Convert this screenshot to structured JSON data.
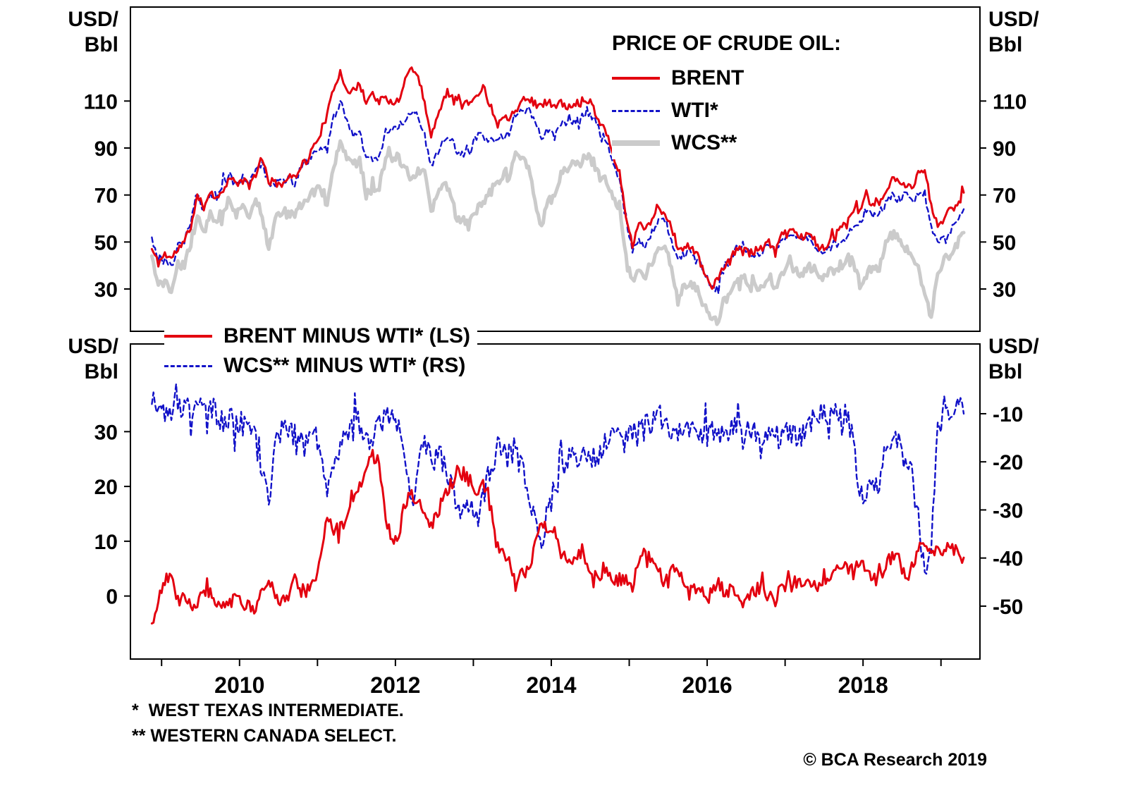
{
  "unit_label": {
    "line1": "USD/",
    "line2": "Bbl"
  },
  "footnotes": {
    "first": "*  WEST TEXAS INTERMEDIATE.",
    "second": "** WESTERN CANADA SELECT."
  },
  "copyright": "© BCA Research 2019",
  "colors": {
    "brent": "#e3000f",
    "wti": "#1212c8",
    "wcs": "#cbcbcb",
    "axis": "#000000"
  },
  "chart_data": [
    {
      "type": "line",
      "panel": "top",
      "legend_title": "PRICE OF CRUDE OIL:",
      "legend_position": "top-right-inside",
      "ylabel": "USD/Bbl",
      "axes": {
        "xlim": [
          2008.6,
          2019.5
        ],
        "ylim": [
          12,
          150
        ],
        "yticks": [
          30,
          50,
          70,
          90,
          110
        ],
        "grid": false
      },
      "x": {
        "start": 2008.875,
        "step": 0.0833333,
        "count": 126,
        "unit": "decimal-year-monthly"
      },
      "series": [
        {
          "name": "BRENT",
          "color": "#e3000f",
          "line": "solid",
          "values": [
            47,
            41,
            45,
            43,
            47,
            50,
            57,
            69,
            65,
            72,
            68,
            73,
            77,
            75,
            76,
            74,
            79,
            85,
            76,
            75,
            75,
            77,
            78,
            83,
            85,
            91,
            97,
            104,
            115,
            123,
            115,
            114,
            117,
            110,
            113,
            110,
            111,
            108,
            111,
            119,
            125,
            120,
            110,
            95,
            103,
            113,
            113,
            112,
            109,
            109,
            113,
            116,
            109,
            102,
            103,
            103,
            107,
            111,
            111,
            109,
            108,
            110,
            108,
            109,
            107,
            108,
            110,
            112,
            107,
            101,
            97,
            87,
            79,
            62,
            48,
            58,
            56,
            60,
            64,
            62,
            57,
            47,
            48,
            48,
            44,
            38,
            31,
            33,
            39,
            42,
            47,
            48,
            45,
            46,
            47,
            50,
            45,
            54,
            55,
            55,
            52,
            53,
            51,
            47,
            49,
            52,
            56,
            57,
            63,
            64,
            69,
            65,
            66,
            72,
            77,
            75,
            74,
            73,
            79,
            81,
            65,
            57,
            60,
            64,
            66,
            71
          ]
        },
        {
          "name": "WTI*",
          "color": "#1212c8",
          "line": "dashed",
          "values": [
            52,
            42,
            42,
            39,
            48,
            50,
            59,
            70,
            64,
            71,
            69,
            75,
            78,
            74,
            78,
            76,
            81,
            84,
            74,
            75,
            76,
            77,
            75,
            82,
            84,
            89,
            89,
            89,
            103,
            110,
            101,
            96,
            97,
            86,
            86,
            86,
            97,
            98,
            100,
            102,
            106,
            103,
            95,
            82,
            88,
            94,
            94,
            89,
            87,
            88,
            95,
            95,
            93,
            92,
            95,
            96,
            105,
            107,
            106,
            100,
            94,
            98,
            95,
            101,
            101,
            102,
            102,
            106,
            103,
            97,
            93,
            84,
            76,
            59,
            47,
            51,
            48,
            54,
            59,
            60,
            51,
            43,
            45,
            46,
            43,
            37,
            32,
            30,
            38,
            41,
            47,
            49,
            45,
            45,
            45,
            50,
            46,
            52,
            53,
            53,
            50,
            51,
            49,
            45,
            46,
            48,
            50,
            52,
            57,
            58,
            64,
            62,
            63,
            66,
            70,
            68,
            71,
            68,
            70,
            71,
            57,
            49,
            52,
            55,
            58,
            64
          ]
        },
        {
          "name": "WCS**",
          "color": "#cbcbcb",
          "line": "solid-thick",
          "values": [
            44,
            33,
            32,
            30,
            40,
            40,
            50,
            61,
            54,
            62,
            59,
            64,
            68,
            62,
            66,
            62,
            69,
            62,
            46,
            60,
            63,
            62,
            61,
            66,
            67,
            75,
            71,
            64,
            82,
            94,
            87,
            83,
            85,
            70,
            72,
            74,
            86,
            86,
            86,
            82,
            76,
            81,
            79,
            62,
            70,
            74,
            71,
            59,
            59,
            58,
            63,
            67,
            71,
            74,
            79,
            76,
            88,
            85,
            81,
            68,
            56,
            68,
            69,
            79,
            81,
            83,
            83,
            87,
            84,
            78,
            77,
            69,
            62,
            45,
            33,
            37,
            35,
            42,
            48,
            49,
            38,
            28,
            31,
            32,
            29,
            23,
            18,
            16,
            24,
            28,
            34,
            36,
            31,
            31,
            31,
            36,
            31,
            37,
            39,
            38,
            36,
            40,
            38,
            35,
            36,
            38,
            40,
            41,
            42,
            32,
            37,
            38,
            39,
            50,
            53,
            52,
            48,
            46,
            38,
            27,
            18,
            36,
            43,
            45,
            49,
            54
          ]
        }
      ]
    },
    {
      "type": "line",
      "panel": "bottom",
      "legend_position": "top-left-inside",
      "ylabel_left": "USD/Bbl",
      "ylabel_right": "USD/Bbl",
      "axes": {
        "xlim": [
          2008.6,
          2019.5
        ],
        "ylim_left": [
          -11.5,
          46
        ],
        "yticks_left": [
          0,
          10,
          20,
          30
        ],
        "ylim_right": [
          -61,
          4.5
        ],
        "yticks_right": [
          -10,
          -20,
          -30,
          -40,
          -50
        ],
        "xticks_minor": [
          2009,
          2010,
          2011,
          2012,
          2013,
          2014,
          2015,
          2016,
          2017,
          2018,
          2019
        ],
        "xtick_labels": [
          {
            "value": 2010,
            "label": "2010"
          },
          {
            "value": 2012,
            "label": "2012"
          },
          {
            "value": 2014,
            "label": "2014"
          },
          {
            "value": 2016,
            "label": "2016"
          },
          {
            "value": 2018,
            "label": "2018"
          }
        ],
        "grid": false
      },
      "x": {
        "start": 2008.875,
        "step": 0.0833333,
        "count": 126,
        "unit": "decimal-year-monthly"
      },
      "series": [
        {
          "name": "BRENT MINUS WTI* (LS)",
          "axis": "left",
          "color": "#e3000f",
          "line": "solid",
          "values": [
            -5,
            -1,
            3,
            4,
            -1,
            0,
            -2,
            -1,
            1,
            1,
            -1,
            -2,
            -1,
            1,
            -2,
            -2,
            -2,
            1,
            2,
            0,
            -1,
            0,
            3,
            1,
            1,
            2,
            8,
            15,
            12,
            13,
            14,
            18,
            20,
            24,
            27,
            24,
            14,
            10,
            11,
            17,
            19,
            17,
            15,
            13,
            15,
            19,
            19,
            23,
            22,
            21,
            18,
            21,
            16,
            10,
            8,
            7,
            2,
            4,
            5,
            9,
            14,
            12,
            13,
            8,
            6,
            6,
            8,
            6,
            4,
            4,
            4,
            3,
            3,
            3,
            1,
            7,
            8,
            6,
            5,
            2,
            6,
            4,
            3,
            2,
            1,
            1,
            -1,
            3,
            1,
            1,
            0,
            -1,
            0,
            1,
            2,
            0,
            -1,
            2,
            2,
            2,
            2,
            2,
            2,
            2,
            3,
            4,
            6,
            5,
            6,
            6,
            5,
            3,
            3,
            6,
            7,
            7,
            3,
            5,
            9,
            10,
            8,
            8,
            8,
            9,
            8,
            7
          ]
        },
        {
          "name": "WCS** MINUS WTI* (RS)",
          "axis": "right",
          "color": "#1212c8",
          "line": "dashed",
          "values": [
            -8,
            -9,
            -10,
            -9,
            -8,
            -10,
            -9,
            -9,
            -10,
            -9,
            -10,
            -11,
            -10,
            -12,
            -12,
            -14,
            -12,
            -22,
            -28,
            -15,
            -13,
            -15,
            -14,
            -16,
            -17,
            -14,
            -18,
            -25,
            -21,
            -16,
            -14,
            -13,
            -12,
            -16,
            -14,
            -12,
            -11,
            -12,
            -14,
            -20,
            -30,
            -22,
            -16,
            -20,
            -18,
            -20,
            -23,
            -30,
            -28,
            -30,
            -32,
            -28,
            -22,
            -18,
            -16,
            -20,
            -17,
            -22,
            -25,
            -32,
            -38,
            -30,
            -26,
            -22,
            -20,
            -19,
            -19,
            -19,
            -19,
            -19,
            -16,
            -15,
            -14,
            -14,
            -14,
            -14,
            -13,
            -12,
            -11,
            -11,
            -13,
            -15,
            -14,
            -14,
            -14,
            -14,
            -14,
            -14,
            -14,
            -13,
            -13,
            -13,
            -14,
            -14,
            -14,
            -14,
            -15,
            -15,
            -14,
            -15,
            -14,
            -11,
            -11,
            -10,
            -10,
            -10,
            -10,
            -11,
            -15,
            -26,
            -27,
            -24,
            -24,
            -16,
            -17,
            -16,
            -23,
            -22,
            -32,
            -44,
            -39,
            -13,
            -9,
            -10,
            -9,
            -10
          ]
        }
      ]
    }
  ]
}
